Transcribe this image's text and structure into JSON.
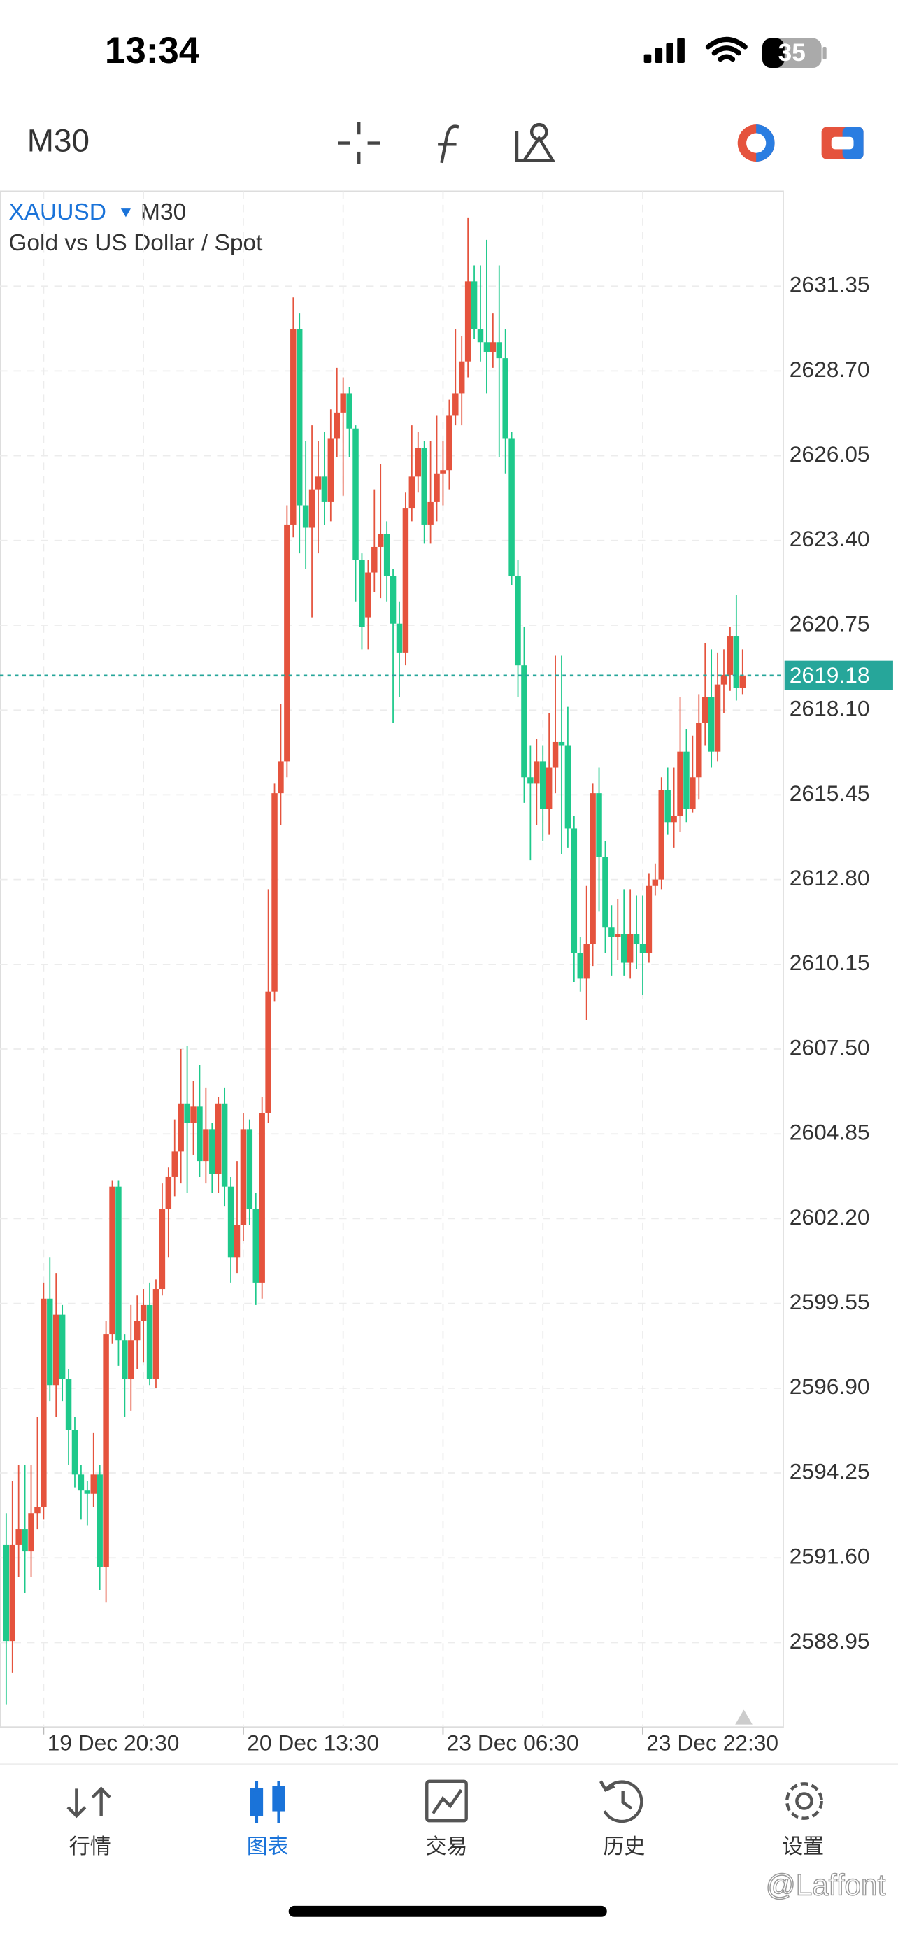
{
  "status": {
    "time": "13:34",
    "battery": "35"
  },
  "toolbar": {
    "timeframe": "M30"
  },
  "chart_data": {
    "type": "candlestick",
    "symbol": "XAUUSD",
    "timeframe": "M30",
    "title": "Gold vs US Dollar / Spot",
    "up_color": "#e5533d",
    "down_color": "#1ec98b",
    "last_price": 2619.18,
    "last_price_color": "#26a69a",
    "categories": [
      null,
      null,
      null,
      null,
      null,
      null,
      "19 Dec 20:30",
      null,
      null,
      null,
      null,
      null,
      null,
      null,
      null,
      null,
      null,
      null,
      null,
      null,
      null,
      null,
      null,
      null,
      null,
      null,
      null,
      null,
      null,
      null,
      null,
      null,
      null,
      null,
      null,
      null,
      null,
      null,
      "20 Dec 13:30",
      null,
      null,
      null,
      null,
      null,
      null,
      null,
      null,
      null,
      null,
      null,
      null,
      null,
      null,
      null,
      null,
      null,
      null,
      null,
      null,
      null,
      null,
      null,
      null,
      null,
      null,
      null,
      null,
      null,
      null,
      null,
      "23 Dec 06:30",
      null,
      null,
      null,
      null,
      null,
      null,
      null,
      null,
      null,
      null,
      null,
      null,
      null,
      null,
      null,
      null,
      null,
      null,
      null,
      null,
      null,
      null,
      null,
      null,
      null,
      null,
      null,
      null,
      null,
      null,
      null,
      "23 Dec 22:30",
      null,
      null,
      null,
      null,
      null,
      null,
      null,
      null,
      null,
      null,
      null,
      null,
      null,
      null,
      null,
      null
    ],
    "open": [
      2592,
      2589,
      2592,
      2592.5,
      2591.8,
      2593,
      2593.2,
      2599.7,
      2597,
      2599.2,
      2597.2,
      2595.6,
      2594.2,
      2593.7,
      2593.6,
      2594.2,
      2591.3,
      2598.6,
      2603.2,
      2598.4,
      2597.2,
      2598.4,
      2599,
      2599.5,
      2597.2,
      2600,
      2602.5,
      2603.5,
      2604.3,
      2605.8,
      2605.2,
      2605.7,
      2604,
      2605,
      2603.6,
      2605.8,
      2603.2,
      2601,
      2602,
      2605,
      2602.5,
      2600.2,
      2605.5,
      2609.3,
      2615.5,
      2616.5,
      2623.9,
      2630,
      2624.5,
      2623.8,
      2625,
      2625.4,
      2624.6,
      2626.6,
      2627.4,
      2628,
      2626.9,
      2622.8,
      2621,
      2622.4,
      2623.2,
      2623.6,
      2622.3,
      2620.8,
      2619.9,
      2624.4,
      2625.4,
      2626.3,
      2623.9,
      2624.6,
      2625.5,
      2625.6,
      2627.3,
      2628,
      2629,
      2631.5,
      2630,
      2629.6,
      2629.3,
      2629.6,
      2629.1,
      2626.6,
      2622.3,
      2619.5,
      2616,
      2615.8,
      2616.5,
      2615,
      2616.3,
      2617.1,
      2617,
      2614.4,
      2610.5,
      2609.7,
      2610.8,
      2615.5,
      2613.5,
      2611.3,
      2611,
      2611.1,
      2610.2,
      2611.1,
      2610.8,
      2610.5,
      2612.6,
      2612.8,
      2615.6,
      2614.6,
      2614.8,
      2616.8,
      2615,
      2616,
      2617.7,
      2618.5,
      2616.8,
      2618.9,
      2619.2,
      2620.4,
      2618.8
    ],
    "high": [
      2593,
      2594,
      2594.5,
      2594.5,
      2594.5,
      2596,
      2600.2,
      2601,
      2600.5,
      2599.5,
      2597.5,
      2596,
      2594.5,
      2594,
      2595.5,
      2594.5,
      2599,
      2603.4,
      2603.4,
      2598.6,
      2599.5,
      2599.8,
      2600,
      2600.2,
      2600.3,
      2603.3,
      2603.8,
      2605.3,
      2607.5,
      2607.6,
      2606.5,
      2607,
      2606.3,
      2605.2,
      2606,
      2606.3,
      2603.5,
      2604,
      2605.5,
      2605.3,
      2603,
      2606,
      2612.5,
      2615.8,
      2618.3,
      2624.5,
      2631,
      2630.5,
      2626.5,
      2627,
      2626.5,
      2626.8,
      2627.5,
      2628.8,
      2628.5,
      2628.2,
      2627,
      2623,
      2622.8,
      2625,
      2625.8,
      2624,
      2622.5,
      2621.5,
      2624.9,
      2627,
      2626.8,
      2626.5,
      2626.5,
      2627.3,
      2626.5,
      2627.8,
      2630,
      2629.8,
      2633.5,
      2632,
      2632,
      2632.8,
      2630.5,
      2632,
      2630,
      2626.8,
      2622.8,
      2620.7,
      2617,
      2617.2,
      2617,
      2618,
      2619.8,
      2619.8,
      2618.2,
      2614.8,
      2611,
      2612.6,
      2615.8,
      2616.3,
      2614,
      2612,
      2612.2,
      2612.5,
      2612.5,
      2612.3,
      2612.3,
      2613,
      2613.3,
      2616,
      2616.3,
      2616.3,
      2618.5,
      2617.5,
      2617.3,
      2618.6,
      2620.2,
      2620,
      2619.9,
      2620,
      2620.7,
      2621.7,
      2620
    ],
    "low": [
      2587,
      2588,
      2591,
      2590.5,
      2591,
      2592.5,
      2592.8,
      2596.5,
      2596,
      2596.5,
      2594.5,
      2593.8,
      2592.8,
      2592.6,
      2593.2,
      2590.6,
      2590.2,
      2598.3,
      2597.6,
      2596,
      2596.2,
      2597.5,
      2597.7,
      2597,
      2596.9,
      2599.8,
      2601,
      2602.9,
      2603.3,
      2603,
      2604.2,
      2603.5,
      2603.3,
      2603,
      2603,
      2602.6,
      2600.2,
      2600.5,
      2601.5,
      2602,
      2599.5,
      2599.7,
      2605.2,
      2609,
      2614.5,
      2616,
      2623.5,
      2623,
      2622.5,
      2621,
      2623,
      2623.9,
      2624,
      2626,
      2624.8,
      2626,
      2621.5,
      2620,
      2620,
      2621.8,
      2621.6,
      2621.5,
      2617.7,
      2618.5,
      2619.5,
      2624,
      2624.9,
      2623.3,
      2623.3,
      2624,
      2624.5,
      2625,
      2627,
      2627,
      2628.5,
      2629.7,
      2629,
      2628,
      2628.8,
      2626,
      2625.5,
      2622,
      2618.5,
      2615.2,
      2613.4,
      2614.5,
      2614,
      2614.2,
      2615.5,
      2613.6,
      2613.8,
      2609.6,
      2609.3,
      2608.4,
      2610.1,
      2611.8,
      2610.5,
      2609.8,
      2610.3,
      2609.8,
      2609.7,
      2610,
      2609.2,
      2610.2,
      2612.3,
      2612.5,
      2614.2,
      2613.8,
      2614.3,
      2614.6,
      2614.9,
      2615.3,
      2617,
      2616.3,
      2616.5,
      2618,
      2618.7,
      2618.4,
      2618.6
    ],
    "close": [
      2589,
      2592,
      2592.5,
      2591.8,
      2593,
      2593.2,
      2599.7,
      2597,
      2599.2,
      2597.2,
      2595.6,
      2594.2,
      2593.7,
      2593.6,
      2594.2,
      2591.3,
      2598.6,
      2603.2,
      2598.4,
      2597.2,
      2598.4,
      2599,
      2599.5,
      2597.2,
      2600,
      2602.5,
      2603.5,
      2604.3,
      2605.8,
      2605.2,
      2605.7,
      2604,
      2605,
      2603.6,
      2605.8,
      2603.2,
      2601,
      2602,
      2605,
      2602.5,
      2600.2,
      2605.5,
      2609.3,
      2615.5,
      2616.5,
      2623.9,
      2630,
      2624.5,
      2623.8,
      2625,
      2625.4,
      2624.6,
      2626.6,
      2627.4,
      2628,
      2626.9,
      2622.8,
      2620.7,
      2622.4,
      2623.2,
      2623.6,
      2622.3,
      2620.8,
      2619.9,
      2624.4,
      2625.4,
      2626.3,
      2623.9,
      2624.6,
      2625.5,
      2625.6,
      2627.3,
      2628,
      2629,
      2631.5,
      2630,
      2629.6,
      2629.3,
      2629.6,
      2629.1,
      2626.6,
      2622.3,
      2619.5,
      2616,
      2615.8,
      2616.5,
      2615,
      2616.3,
      2617.1,
      2617,
      2614.4,
      2610.5,
      2609.7,
      2610.8,
      2615.5,
      2613.5,
      2611.3,
      2611,
      2611.1,
      2610.2,
      2611.1,
      2610.8,
      2610.5,
      2612.6,
      2612.8,
      2615.6,
      2614.6,
      2614.8,
      2616.8,
      2615,
      2616,
      2617.7,
      2618.5,
      2616.8,
      2618.9,
      2619.2,
      2620.4,
      2618.8,
      2619.18
    ],
    "ylim": [
      2586.31,
      2634.32
    ],
    "yticks": [
      2588.95,
      {
        "value": 2591.6,
        "label": "2591.60"
      },
      2594.25,
      {
        "value": 2596.9,
        "label": "2596.90"
      },
      2599.55,
      {
        "value": 2602.2,
        "label": "2602.20"
      },
      2604.85,
      {
        "value": 2607.5,
        "label": "2607.50"
      },
      2610.15,
      {
        "value": 2612.8,
        "label": "2612.80"
      },
      2615.45,
      {
        "value": 2618.1,
        "label": "2618.10"
      },
      2620.75,
      {
        "value": 2623.4,
        "label": "2623.40"
      },
      2626.05,
      {
        "value": 2628.7,
        "label": "2628.70"
      },
      2631.35
    ],
    "grid": true
  },
  "nav": [
    {
      "label": "行情"
    },
    {
      "label": "图表",
      "active": true
    },
    {
      "label": "交易"
    },
    {
      "label": "历史"
    },
    {
      "label": "设置"
    }
  ],
  "watermark": "@Laffont"
}
